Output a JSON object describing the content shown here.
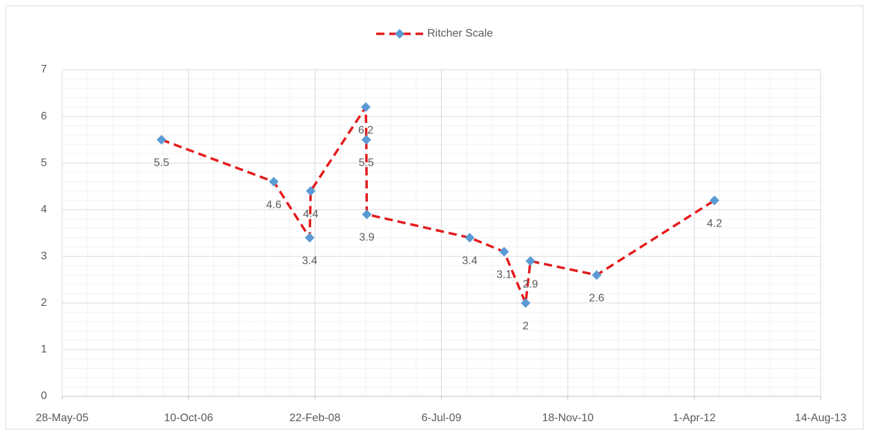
{
  "chart_data": {
    "type": "line",
    "x": [
      "2006-06-25",
      "2007-09-12",
      "2008-02-01",
      "2008-02-05",
      "2008-09-10",
      "2008-09-12",
      "2008-09-14",
      "2009-10-26",
      "2010-03-11",
      "2010-06-04",
      "2010-06-23",
      "2011-03-12",
      "2012-06-20"
    ],
    "series": [
      {
        "name": "Ritcher Scale",
        "color": "#e41a1c",
        "marker_color": "#5b9bd5",
        "values": [
          5.5,
          4.6,
          3.4,
          4.4,
          6.2,
          5.5,
          3.9,
          3.4,
          3.1,
          2,
          2.9,
          2.6,
          4.2
        ]
      }
    ],
    "xlim": [
      "2005-05-28",
      "2013-08-14"
    ],
    "xticks": [
      {
        "value": "2005-05-28",
        "label": "28-May-05"
      },
      {
        "value": "2006-10-10",
        "label": "10-Oct-06"
      },
      {
        "value": "2008-02-22",
        "label": "22-Feb-08"
      },
      {
        "value": "2009-07-06",
        "label": "6-Jul-09"
      },
      {
        "value": "2010-11-18",
        "label": "18-Nov-10"
      },
      {
        "value": "2012-04-01",
        "label": "1-Apr-12"
      },
      {
        "value": "2013-08-14",
        "label": "14-Aug-13"
      }
    ],
    "ylim": [
      0,
      7
    ],
    "yticks": [
      0,
      1,
      2,
      3,
      4,
      5,
      6,
      7
    ],
    "grid": true,
    "minor_grid": true,
    "legend": "top",
    "data_labels": true
  }
}
